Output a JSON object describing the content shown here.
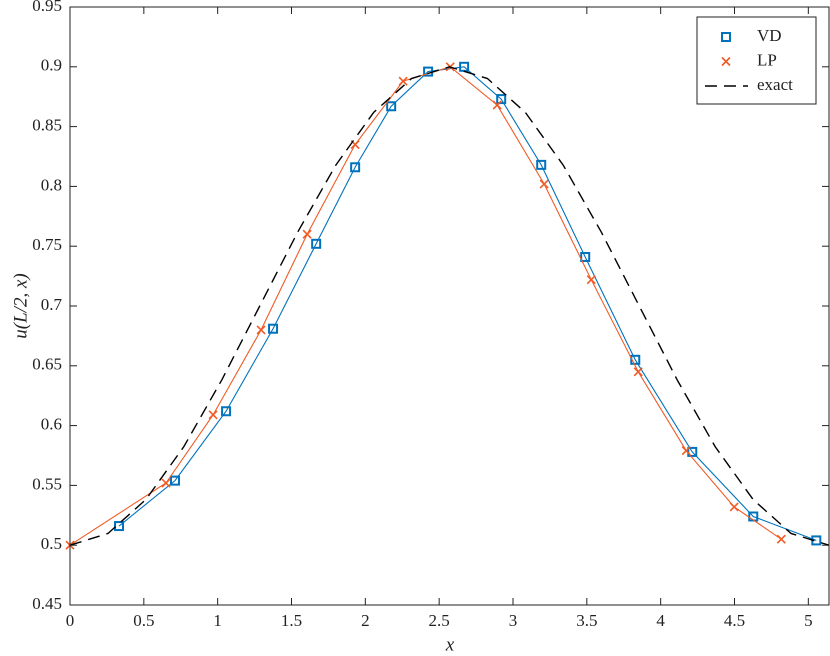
{
  "chart_data": {
    "type": "line",
    "xlabel": "x",
    "ylabel": "u(L/2, x)",
    "xlim": [
      0,
      5.14
    ],
    "xticks": [
      0,
      0.5,
      1,
      1.5,
      2,
      2.5,
      3,
      3.5,
      4,
      4.5,
      5
    ],
    "ylim": [
      0.45,
      0.95
    ],
    "yticks": [
      0.45,
      0.5,
      0.55,
      0.6,
      0.65,
      0.7,
      0.75,
      0.8,
      0.85,
      0.9,
      0.95
    ],
    "legend": "upper right",
    "series": [
      {
        "name": "VD",
        "color": "#0072bd",
        "marker": "square",
        "linestyle": "solid",
        "x": [
          0.332,
          0.711,
          1.057,
          1.375,
          1.667,
          1.931,
          2.175,
          2.425,
          2.669,
          2.92,
          3.191,
          3.489,
          3.828,
          4.214,
          4.627,
          5.054
        ],
        "values": [
          0.516,
          0.554,
          0.612,
          0.681,
          0.752,
          0.816,
          0.867,
          0.896,
          0.9,
          0.873,
          0.818,
          0.741,
          0.655,
          0.578,
          0.524,
          0.504
        ]
      },
      {
        "name": "LP",
        "color": "#f05a24",
        "marker": "x",
        "linestyle": "solid",
        "x": [
          0,
          0.65,
          0.969,
          1.294,
          1.606,
          1.931,
          2.256,
          2.575,
          2.893,
          3.211,
          3.53,
          3.848,
          4.173,
          4.498,
          4.817
        ],
        "values": [
          0.5,
          0.552,
          0.609,
          0.68,
          0.76,
          0.835,
          0.888,
          0.9,
          0.868,
          0.802,
          0.722,
          0.645,
          0.579,
          0.532,
          0.505
        ]
      },
      {
        "name": "exact",
        "color": "#000000",
        "marker": "none",
        "linestyle": "dashed",
        "x": [
          0,
          0.257,
          0.514,
          0.771,
          1.028,
          1.285,
          1.542,
          1.799,
          2.056,
          2.313,
          2.57,
          2.827,
          3.084,
          3.341,
          3.598,
          3.855,
          4.112,
          4.369,
          4.626,
          4.883,
          5.14
        ],
        "values": [
          0.5,
          0.5098,
          0.5382,
          0.5824,
          0.6382,
          0.7,
          0.7618,
          0.8176,
          0.8618,
          0.8902,
          0.9,
          0.8902,
          0.8618,
          0.8176,
          0.7618,
          0.7,
          0.6382,
          0.5824,
          0.5382,
          0.5098,
          0.5
        ]
      }
    ]
  }
}
